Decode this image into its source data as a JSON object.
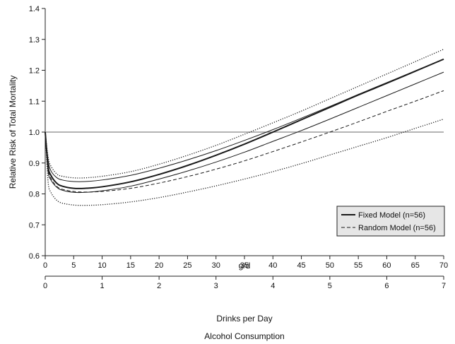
{
  "chart_data": {
    "type": "line",
    "title": "",
    "xlabel": "g/d",
    "xlabel2": "Drinks per Day",
    "caption": "Alcohol Consumption",
    "ylabel": "Relative Risk of Total Mortality",
    "xlim": [
      0,
      70
    ],
    "ylim": [
      0.6,
      1.4
    ],
    "x_ticks": [
      0,
      5,
      10,
      15,
      20,
      25,
      30,
      35,
      40,
      45,
      50,
      55,
      60,
      65,
      70
    ],
    "y_ticks": [
      0.6,
      0.7,
      0.8,
      0.9,
      1.0,
      1.1,
      1.2,
      1.3,
      1.4
    ],
    "x_ticks2": [
      0,
      1,
      2,
      3,
      4,
      5,
      6,
      7
    ],
    "reference_line": 1.0,
    "x": [
      0,
      0.5,
      1,
      2,
      3,
      5,
      7,
      10,
      15,
      20,
      25,
      30,
      35,
      40,
      45,
      50,
      55,
      60,
      65,
      70
    ],
    "series": [
      {
        "name": "Fixed Model (n=56)",
        "style": "solid",
        "width": 2,
        "values": [
          1.0,
          0.89,
          0.86,
          0.835,
          0.825,
          0.818,
          0.818,
          0.823,
          0.839,
          0.863,
          0.892,
          0.925,
          0.961,
          1.0,
          1.04,
          1.08,
          1.12,
          1.158,
          1.197,
          1.236
        ]
      },
      {
        "name": "",
        "style": "solid",
        "width": 1,
        "values": [
          1.0,
          0.91,
          0.875,
          0.853,
          0.845,
          0.84,
          0.84,
          0.845,
          0.86,
          0.883,
          0.91,
          0.94,
          0.973,
          1.008,
          1.045,
          1.083,
          1.122,
          1.16,
          1.198,
          1.236
        ]
      },
      {
        "name": "",
        "style": "solid",
        "width": 1,
        "values": [
          1.0,
          0.875,
          0.845,
          0.822,
          0.812,
          0.805,
          0.805,
          0.81,
          0.825,
          0.848,
          0.874,
          0.903,
          0.935,
          0.97,
          1.005,
          1.042,
          1.08,
          1.118,
          1.156,
          1.194
        ]
      },
      {
        "name": "Random Model (n=56)",
        "style": "dashed",
        "width": 1,
        "values": [
          1.0,
          0.883,
          0.85,
          0.825,
          0.815,
          0.808,
          0.806,
          0.808,
          0.818,
          0.835,
          0.856,
          0.88,
          0.907,
          0.937,
          0.968,
          1.0,
          1.033,
          1.067,
          1.1,
          1.134
        ]
      },
      {
        "name": "",
        "style": "dotted",
        "width": 1,
        "values": [
          1.0,
          0.92,
          0.89,
          0.865,
          0.857,
          0.852,
          0.852,
          0.857,
          0.872,
          0.896,
          0.925,
          0.957,
          0.993,
          1.03,
          1.068,
          1.108,
          1.148,
          1.188,
          1.228,
          1.268
        ]
      },
      {
        "name": "",
        "style": "dotted",
        "width": 1,
        "values": [
          1.0,
          0.84,
          0.805,
          0.78,
          0.77,
          0.764,
          0.763,
          0.765,
          0.774,
          0.788,
          0.806,
          0.826,
          0.848,
          0.872,
          0.898,
          0.926,
          0.954,
          0.982,
          1.012,
          1.042
        ]
      }
    ],
    "legend": {
      "placement": "bottom-right",
      "entries": [
        {
          "label": "Fixed Model (n=56)",
          "style": "solid"
        },
        {
          "label": "Random Model (n=56)",
          "style": "dashed"
        }
      ],
      "background": "#e8e8e8"
    },
    "colors": {
      "lines": "#1a1a1a",
      "reference": "#888888",
      "axis": "#222222"
    }
  }
}
